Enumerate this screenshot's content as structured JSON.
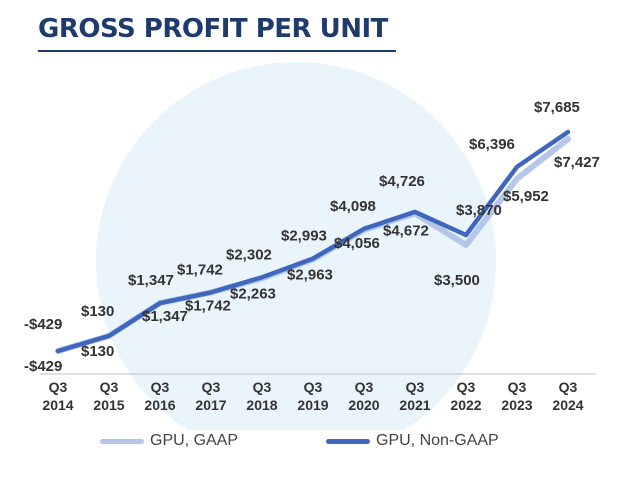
{
  "title": "GROSS PROFIT PER UNIT",
  "colors": {
    "title": "#1f3b6e",
    "gaap": "#b5c6ea",
    "non_gaap": "#3e67bd",
    "background_circle": "#eaf4fb"
  },
  "chart_data": {
    "type": "line",
    "title": "GROSS PROFIT PER UNIT",
    "categories": [
      "Q3 2014",
      "Q3 2015",
      "Q3 2016",
      "Q3 2017",
      "Q3 2018",
      "Q3 2019",
      "Q3 2020",
      "Q3 2021",
      "Q3 2022",
      "Q3 2023",
      "Q3 2024"
    ],
    "tick_lines": [
      [
        "Q3",
        "2014"
      ],
      [
        "Q3",
        "2015"
      ],
      [
        "Q3",
        "2016"
      ],
      [
        "Q3",
        "2017"
      ],
      [
        "Q3",
        "2018"
      ],
      [
        "Q3",
        "2019"
      ],
      [
        "Q3",
        "2020"
      ],
      [
        "Q3",
        "2021"
      ],
      [
        "Q3",
        "2022"
      ],
      [
        "Q3",
        "2023"
      ],
      [
        "Q3",
        "2024"
      ]
    ],
    "series": [
      {
        "name": "GPU, GAAP",
        "values": [
          -429,
          130,
          1347,
          1742,
          2263,
          2963,
          4056,
          4672,
          3500,
          5952,
          7427
        ],
        "labels": [
          "-$429",
          "$130",
          "$1,347",
          "$1,742",
          "$2,263",
          "$2,963",
          "$4,056",
          "$4,672",
          "$3,500",
          "$5,952",
          "$7,427"
        ]
      },
      {
        "name": "GPU, Non-GAAP",
        "values": [
          -429,
          130,
          1347,
          1742,
          2302,
          2993,
          4098,
          4726,
          3870,
          6396,
          7685
        ],
        "labels": [
          "-$429",
          "$130",
          "$1,347",
          "$1,742",
          "$2,302",
          "$2,993",
          "$4,098",
          "$4,726",
          "$3,870",
          "$6,396",
          "$7,685"
        ]
      }
    ],
    "xlabel": "",
    "ylabel": "",
    "grid": false,
    "legend": "bottom"
  }
}
